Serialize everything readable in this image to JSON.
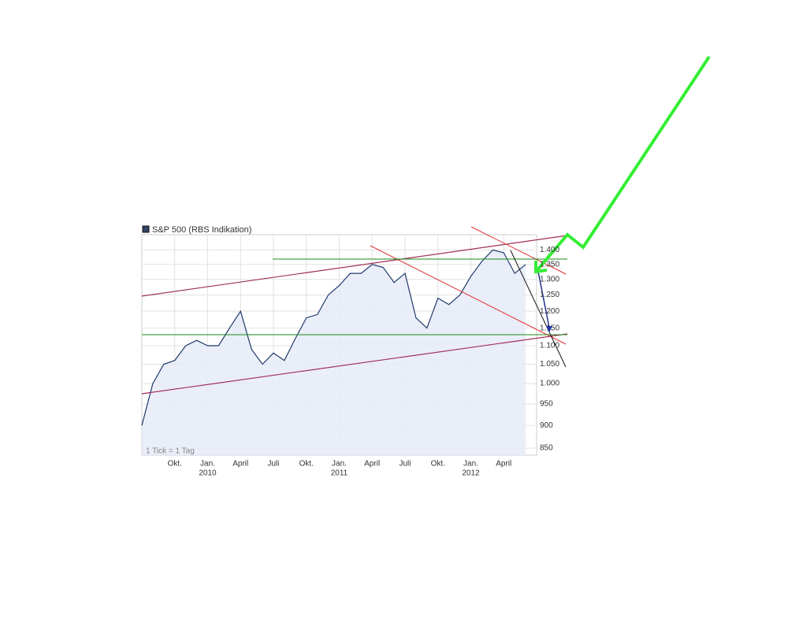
{
  "chart_data": {
    "type": "line",
    "legend": "S&P 500 (RBS Indikation)",
    "note": "1 Tick = 1 Tag",
    "x": [
      "2009-07",
      "2009-08",
      "2009-09",
      "2009-10",
      "2009-11",
      "2009-12",
      "2010-01",
      "2010-02",
      "2010-03",
      "2010-04",
      "2010-05",
      "2010-06",
      "2010-07",
      "2010-08",
      "2010-09",
      "2010-10",
      "2010-11",
      "2010-12",
      "2011-01",
      "2011-02",
      "2011-03",
      "2011-04",
      "2011-05",
      "2011-06",
      "2011-07",
      "2011-08",
      "2011-09",
      "2011-10",
      "2011-11",
      "2011-12",
      "2012-01",
      "2012-02",
      "2012-03",
      "2012-04",
      "2012-05",
      "2012-06"
    ],
    "series": [
      {
        "name": "S&P 500 (RBS Indikation)",
        "color": "#1f3a6b",
        "values": [
          900,
          1000,
          1050,
          1060,
          1100,
          1115,
          1100,
          1100,
          1150,
          1200,
          1090,
          1050,
          1080,
          1060,
          1120,
          1180,
          1190,
          1250,
          1280,
          1320,
          1320,
          1350,
          1340,
          1290,
          1320,
          1180,
          1150,
          1240,
          1220,
          1250,
          1310,
          1360,
          1400,
          1390,
          1320,
          1350
        ]
      }
    ],
    "xlim": [
      "2009-07",
      "2012-07"
    ],
    "xticks": [
      {
        "value": "2009-10",
        "label": "Okt."
      },
      {
        "value": "2010-01",
        "label": "Jan."
      },
      {
        "value": "2010-04",
        "label": "April"
      },
      {
        "value": "2010-07",
        "label": "Juli"
      },
      {
        "value": "2010-10",
        "label": "Okt."
      },
      {
        "value": "2011-01",
        "label": "Jan."
      },
      {
        "value": "2011-04",
        "label": "April"
      },
      {
        "value": "2011-07",
        "label": "Juli"
      },
      {
        "value": "2011-10",
        "label": "Okt."
      },
      {
        "value": "2012-01",
        "label": "Jan."
      },
      {
        "value": "2012-04",
        "label": "April"
      }
    ],
    "year_ticks": [
      {
        "value": "2010-01",
        "label": "2010"
      },
      {
        "value": "2011-01",
        "label": "2011"
      },
      {
        "value": "2012-01",
        "label": "2012"
      }
    ],
    "ylim": [
      835,
      1455
    ],
    "log_scale": true,
    "grid": true,
    "yticks": [
      {
        "value": 1400,
        "label": "1.400"
      },
      {
        "value": 1350,
        "label": "1.350"
      },
      {
        "value": 1300,
        "label": "1.300"
      },
      {
        "value": 1250,
        "label": "1.250"
      },
      {
        "value": 1200,
        "label": "1.200"
      },
      {
        "value": 1150,
        "label": "1.150"
      },
      {
        "value": 1100,
        "label": "1.100"
      },
      {
        "value": 1050,
        "label": "1.050"
      },
      {
        "value": 1000,
        "label": "1.000"
      },
      950,
      900,
      850
    ]
  }
}
